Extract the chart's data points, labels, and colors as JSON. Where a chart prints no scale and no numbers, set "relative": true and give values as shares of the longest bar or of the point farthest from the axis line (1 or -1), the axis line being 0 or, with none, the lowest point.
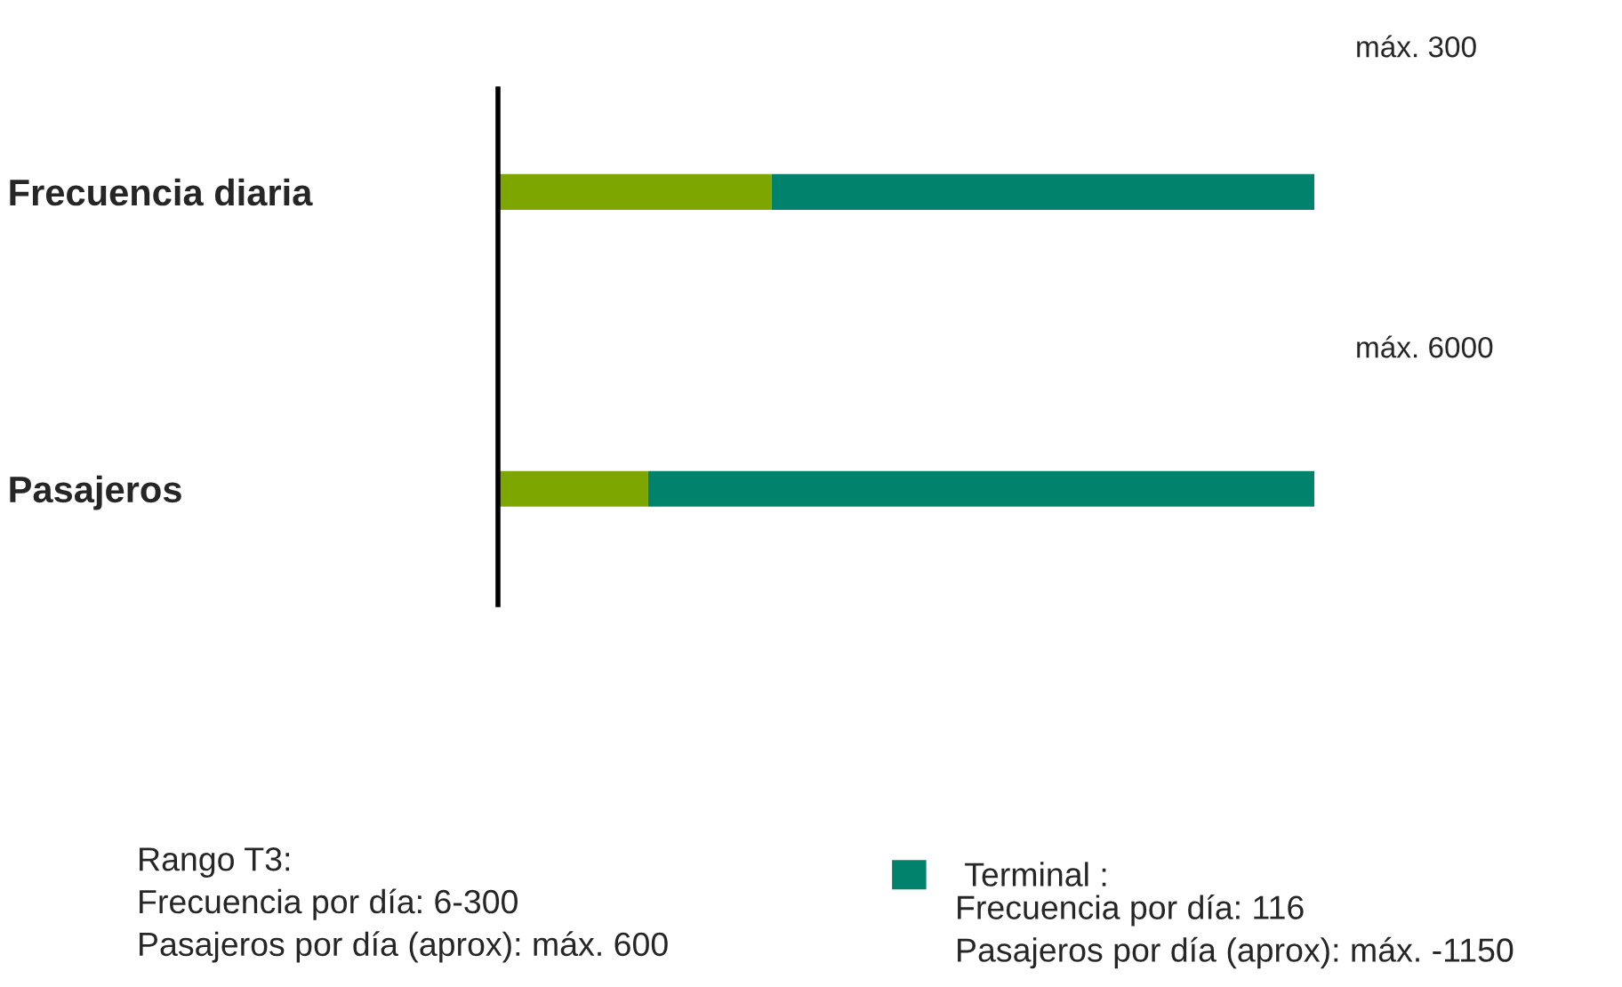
{
  "chart_data": {
    "type": "bar",
    "orientation": "horizontal",
    "stacked": true,
    "relative": true,
    "categories": [
      "Frecuencia diaria",
      "Pasajeros"
    ],
    "series": [
      {
        "color": "#7ea600",
        "values": [
          0.335,
          0.184
        ]
      },
      {
        "name": "Terminal :",
        "color": "#00826d",
        "values": [
          0.665,
          0.816
        ]
      }
    ],
    "legend": "bottom",
    "grid": false,
    "annotations": [
      "máx. 300",
      "máx. 6000",
      "Rango T3:\nFrecuencia por día: 6-300\nPasajeros por día (aprox): máx. 600",
      "Frecuencia por día: 116\nPasajeros por día (aprox): máx. -1150"
    ]
  }
}
